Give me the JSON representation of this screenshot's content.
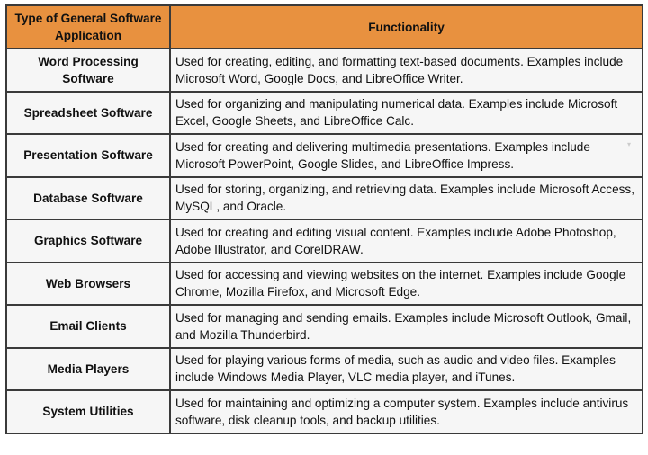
{
  "header": {
    "col1": "Type of General Software Application",
    "col2": "Functionality"
  },
  "rows": [
    {
      "type": "Word Processing Software",
      "functionality": "Used for creating, editing, and formatting text-based documents. Examples include Microsoft Word, Google Docs, and LibreOffice Writer."
    },
    {
      "type": "Spreadsheet Software",
      "functionality": "Used for organizing and manipulating numerical data. Examples include Microsoft Excel, Google Sheets, and LibreOffice Calc."
    },
    {
      "type": "Presentation Software",
      "functionality": "Used for creating and delivering multimedia presentations. Examples include Microsoft PowerPoint, Google Slides, and LibreOffice Impress."
    },
    {
      "type": "Database Software",
      "functionality": "Used for storing, organizing, and retrieving data. Examples include Microsoft Access, MySQL, and Oracle."
    },
    {
      "type": "Graphics Software",
      "functionality": "Used for creating and editing visual content. Examples include Adobe Photoshop, Adobe Illustrator, and CorelDRAW."
    },
    {
      "type": "Web Browsers",
      "functionality": "Used for accessing and viewing websites on the internet. Examples include Google Chrome, Mozilla Firefox, and Microsoft Edge."
    },
    {
      "type": "Email Clients",
      "functionality": "Used for managing and sending emails. Examples include Microsoft Outlook, Gmail, and Mozilla Thunderbird."
    },
    {
      "type": "Media Players",
      "functionality": "Used for playing various forms of media, such as audio and video files. Examples include Windows Media Player, VLC media player, and iTunes."
    },
    {
      "type": "System Utilities",
      "functionality": "Used for maintaining and optimizing a computer system. Examples include antivirus software, disk cleanup tools, and backup utilities."
    }
  ],
  "colors": {
    "header_bg": "#e8913f",
    "cell_bg": "#f6f6f6",
    "border": "#3a3a3a"
  }
}
